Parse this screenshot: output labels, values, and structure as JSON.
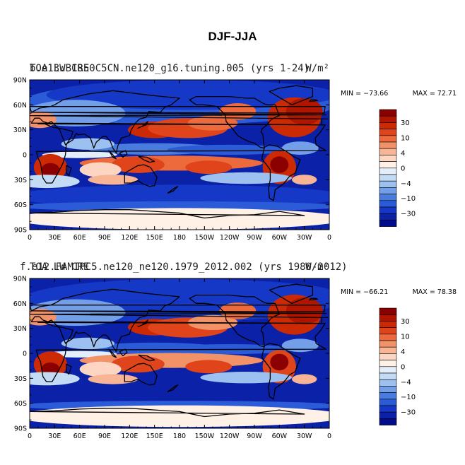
{
  "figure_title": "DJF-JJA",
  "chart_data": [
    {
      "type": "heatmap",
      "title_left": "b.e13.B1850C5CN.ne120_g16.tuning.005 (yrs 1-24)",
      "title_overlay": "TOA LW CRE",
      "units": "W/m²",
      "min_label": "MIN = −73.66",
      "max_label": "MAX =  72.71",
      "min": -73.66,
      "max": 72.71,
      "xlim": [
        0,
        360
      ],
      "ylim": [
        -90,
        90
      ],
      "x_ticks": [
        "0",
        "30E",
        "60E",
        "90E",
        "120E",
        "150E",
        "180",
        "150W",
        "120W",
        "90W",
        "60W",
        "30W",
        "0"
      ],
      "y_ticks": [
        "90N",
        "60N",
        "30N",
        "0",
        "30S",
        "60S",
        "90S"
      ],
      "contour_levels": [
        -50,
        -40,
        -30,
        -20,
        -15,
        -10,
        -6,
        -4,
        -2,
        0,
        2,
        4,
        6,
        10,
        15,
        20,
        30,
        40,
        50
      ],
      "colorbar_labels": [
        "30",
        "10",
        "4",
        "0",
        "−4",
        "−10",
        "−30"
      ]
    },
    {
      "type": "heatmap",
      "title_left": "f.e12.FAMIPC5.ne120_ne120.1979_2012.002 (yrs 1980-2012)",
      "title_overlay": "TOA LW CRE",
      "units": "W/m²",
      "min_label": "MIN = −66.21",
      "max_label": "MAX =  78.38",
      "min": -66.21,
      "max": 78.38,
      "xlim": [
        0,
        360
      ],
      "ylim": [
        -90,
        90
      ],
      "x_ticks": [
        "0",
        "30E",
        "60E",
        "90E",
        "120E",
        "150E",
        "180",
        "150W",
        "120W",
        "90W",
        "60W",
        "30W",
        "0"
      ],
      "y_ticks": [
        "90N",
        "60N",
        "30N",
        "0",
        "30S",
        "60S",
        "90S"
      ],
      "contour_levels": [
        -50,
        -40,
        -30,
        -20,
        -15,
        -10,
        -6,
        -4,
        -2,
        0,
        2,
        4,
        6,
        10,
        15,
        20,
        30,
        40,
        50
      ],
      "colorbar_labels": [
        "30",
        "10",
        "4",
        "0",
        "−4",
        "−10",
        "−30"
      ]
    }
  ],
  "palette": [
    "#8b0000",
    "#b01500",
    "#cc2a05",
    "#e0441a",
    "#ec6a3c",
    "#f29268",
    "#f8b596",
    "#fcd6c2",
    "#fff1e6",
    "#e3eefa",
    "#c3dbf5",
    "#9cc0ef",
    "#729fe8",
    "#4a7ce0",
    "#2b5bd6",
    "#1539c6",
    "#0a21a8",
    "#000c8c"
  ],
  "ocean_color": "#0a21a8"
}
